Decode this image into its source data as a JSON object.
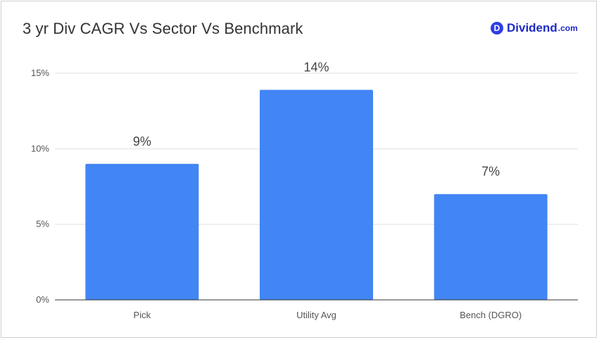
{
  "logo": {
    "letter": "D",
    "name": "Dividend",
    "suffix": ".com"
  },
  "colors": {
    "bar": "#4285f4",
    "grid": "#e0e0e0",
    "axis": "#333333"
  },
  "chart_data": {
    "type": "bar",
    "title": "3 yr Div CAGR Vs Sector Vs Benchmark",
    "categories": [
      "Pick",
      "Utility Avg",
      "Bench (DGRO)"
    ],
    "values": [
      9,
      13.9,
      7
    ],
    "data_labels": [
      "9%",
      "14%",
      "7%"
    ],
    "yticks": [
      0,
      5,
      10,
      15
    ],
    "ytick_labels": [
      "0%",
      "5%",
      "10%",
      "15%"
    ],
    "ylim": [
      0,
      15
    ],
    "xlabel": "",
    "ylabel": "",
    "grid": true,
    "legend": "none"
  }
}
